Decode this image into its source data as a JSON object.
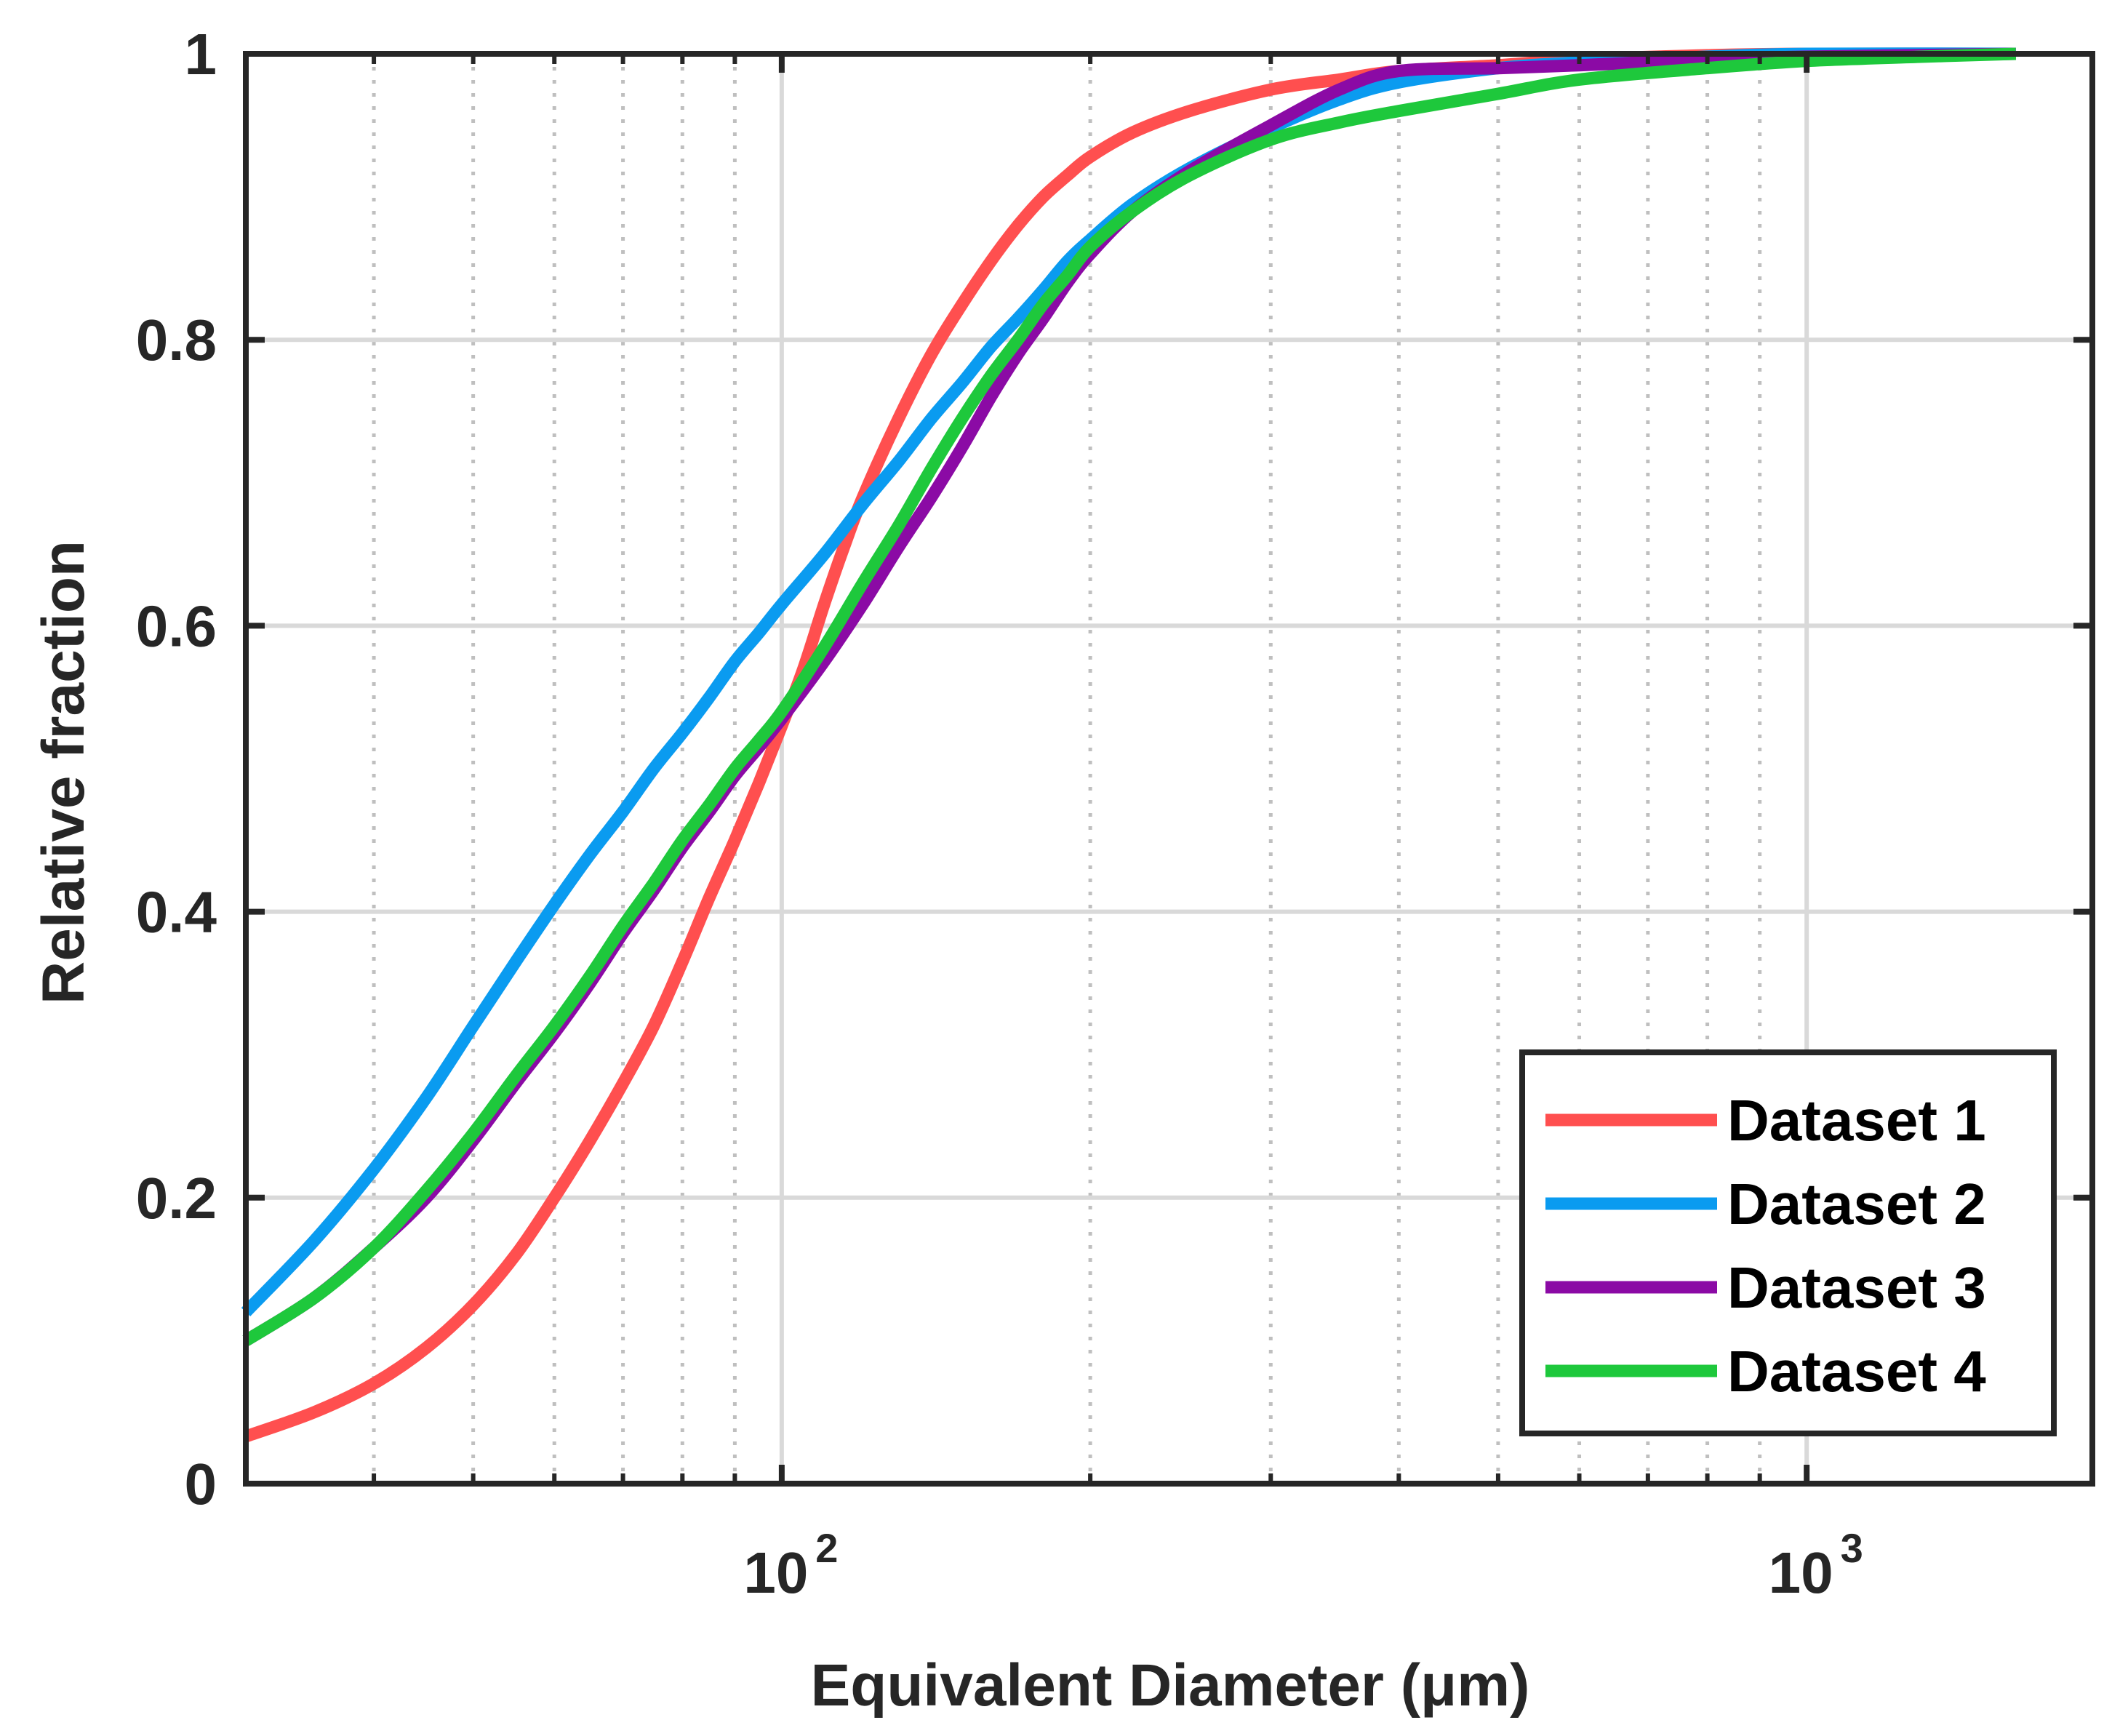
{
  "chart_data": {
    "type": "line",
    "title": "",
    "xlabel": "Equivalent Diameter (μm)",
    "ylabel": "Relative fraction",
    "xscale": "log",
    "xlim": [
      30,
      1900
    ],
    "ylim": [
      0,
      1
    ],
    "grid": true,
    "legend_position": "bottom-right",
    "xticks": [
      {
        "value": 100,
        "base": "10",
        "exp": "2"
      },
      {
        "value": 1000,
        "base": "10",
        "exp": "3"
      }
    ],
    "yticks": [
      {
        "value": 0,
        "label": "0"
      },
      {
        "value": 0.2,
        "label": "0.2"
      },
      {
        "value": 0.4,
        "label": "0.4"
      },
      {
        "value": 0.6,
        "label": "0.6"
      },
      {
        "value": 0.8,
        "label": "0.8"
      },
      {
        "value": 1,
        "label": "1"
      }
    ],
    "series": [
      {
        "name": "Dataset 1",
        "color": "#FF4F4F",
        "points": [
          [
            30,
            0.033
          ],
          [
            35,
            0.05
          ],
          [
            40,
            0.07
          ],
          [
            45,
            0.095
          ],
          [
            50,
            0.125
          ],
          [
            55,
            0.16
          ],
          [
            60,
            0.2
          ],
          [
            65,
            0.24
          ],
          [
            70,
            0.28
          ],
          [
            75,
            0.32
          ],
          [
            80,
            0.365
          ],
          [
            85,
            0.41
          ],
          [
            90,
            0.45
          ],
          [
            95,
            0.49
          ],
          [
            100,
            0.53
          ],
          [
            105,
            0.57
          ],
          [
            110,
            0.615
          ],
          [
            115,
            0.655
          ],
          [
            120,
            0.69
          ],
          [
            130,
            0.745
          ],
          [
            140,
            0.79
          ],
          [
            150,
            0.825
          ],
          [
            160,
            0.855
          ],
          [
            170,
            0.88
          ],
          [
            180,
            0.9
          ],
          [
            190,
            0.915
          ],
          [
            200,
            0.928
          ],
          [
            220,
            0.945
          ],
          [
            250,
            0.96
          ],
          [
            300,
            0.975
          ],
          [
            350,
            0.982
          ],
          [
            400,
            0.988
          ],
          [
            500,
            0.992
          ],
          [
            600,
            0.996
          ],
          [
            800,
            0.999
          ],
          [
            1000,
            1.0
          ],
          [
            1600,
            1.0
          ]
        ]
      },
      {
        "name": "Dataset 2",
        "color": "#0A9BF0",
        "points": [
          [
            30,
            0.12
          ],
          [
            35,
            0.17
          ],
          [
            40,
            0.22
          ],
          [
            45,
            0.27
          ],
          [
            50,
            0.32
          ],
          [
            55,
            0.365
          ],
          [
            60,
            0.405
          ],
          [
            65,
            0.44
          ],
          [
            70,
            0.47
          ],
          [
            75,
            0.5
          ],
          [
            80,
            0.525
          ],
          [
            85,
            0.55
          ],
          [
            90,
            0.575
          ],
          [
            95,
            0.595
          ],
          [
            100,
            0.615
          ],
          [
            110,
            0.65
          ],
          [
            120,
            0.685
          ],
          [
            130,
            0.715
          ],
          [
            140,
            0.745
          ],
          [
            150,
            0.77
          ],
          [
            160,
            0.795
          ],
          [
            170,
            0.815
          ],
          [
            180,
            0.835
          ],
          [
            190,
            0.855
          ],
          [
            200,
            0.87
          ],
          [
            220,
            0.895
          ],
          [
            250,
            0.92
          ],
          [
            300,
            0.948
          ],
          [
            350,
            0.968
          ],
          [
            400,
            0.98
          ],
          [
            500,
            0.99
          ],
          [
            600,
            0.994
          ],
          [
            800,
            0.998
          ],
          [
            1000,
            1.0
          ],
          [
            1600,
            1.0
          ]
        ]
      },
      {
        "name": "Dataset 3",
        "color": "#8B0AA5",
        "points": [
          [
            30,
            0.1
          ],
          [
            35,
            0.13
          ],
          [
            40,
            0.165
          ],
          [
            45,
            0.2
          ],
          [
            50,
            0.24
          ],
          [
            55,
            0.28
          ],
          [
            60,
            0.315
          ],
          [
            65,
            0.35
          ],
          [
            70,
            0.385
          ],
          [
            75,
            0.415
          ],
          [
            80,
            0.445
          ],
          [
            85,
            0.47
          ],
          [
            90,
            0.495
          ],
          [
            95,
            0.515
          ],
          [
            100,
            0.535
          ],
          [
            110,
            0.575
          ],
          [
            120,
            0.615
          ],
          [
            130,
            0.655
          ],
          [
            140,
            0.69
          ],
          [
            150,
            0.725
          ],
          [
            160,
            0.76
          ],
          [
            170,
            0.79
          ],
          [
            180,
            0.815
          ],
          [
            190,
            0.84
          ],
          [
            200,
            0.86
          ],
          [
            220,
            0.89
          ],
          [
            250,
            0.918
          ],
          [
            300,
            0.95
          ],
          [
            350,
            0.975
          ],
          [
            400,
            0.988
          ],
          [
            500,
            0.99
          ],
          [
            600,
            0.992
          ],
          [
            800,
            0.996
          ],
          [
            1000,
            0.998
          ],
          [
            1600,
            1.0
          ]
        ]
      },
      {
        "name": "Dataset 4",
        "color": "#1EC83C",
        "points": [
          [
            30,
            0.1
          ],
          [
            35,
            0.13
          ],
          [
            40,
            0.165
          ],
          [
            45,
            0.205
          ],
          [
            50,
            0.245
          ],
          [
            55,
            0.285
          ],
          [
            60,
            0.32
          ],
          [
            65,
            0.355
          ],
          [
            70,
            0.39
          ],
          [
            75,
            0.42
          ],
          [
            80,
            0.45
          ],
          [
            85,
            0.475
          ],
          [
            90,
            0.5
          ],
          [
            95,
            0.52
          ],
          [
            100,
            0.54
          ],
          [
            110,
            0.585
          ],
          [
            120,
            0.63
          ],
          [
            130,
            0.67
          ],
          [
            140,
            0.71
          ],
          [
            150,
            0.745
          ],
          [
            160,
            0.775
          ],
          [
            170,
            0.8
          ],
          [
            180,
            0.825
          ],
          [
            190,
            0.845
          ],
          [
            200,
            0.865
          ],
          [
            220,
            0.89
          ],
          [
            250,
            0.915
          ],
          [
            300,
            0.94
          ],
          [
            350,
            0.952
          ],
          [
            400,
            0.96
          ],
          [
            500,
            0.972
          ],
          [
            600,
            0.982
          ],
          [
            800,
            0.99
          ],
          [
            1000,
            0.995
          ],
          [
            1300,
            0.998
          ],
          [
            1600,
            1.0
          ]
        ]
      }
    ]
  }
}
